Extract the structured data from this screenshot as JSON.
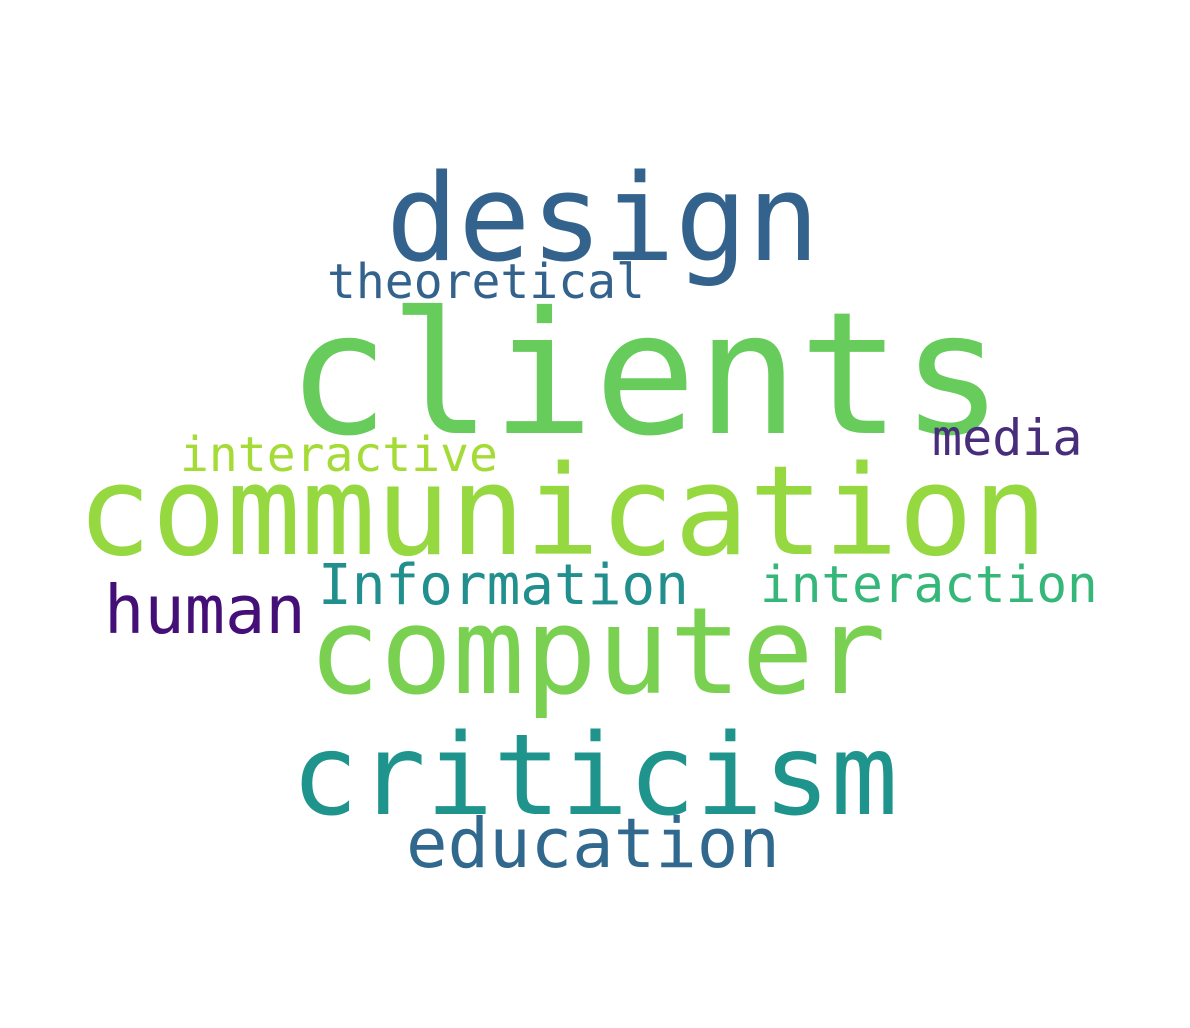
{
  "words": [
    {
      "id": "design",
      "text": "design",
      "color": "#33638d"
    },
    {
      "id": "theoretical",
      "text": "theoretical",
      "color": "#33638d"
    },
    {
      "id": "clients",
      "text": "clients",
      "color": "#67cc5c"
    },
    {
      "id": "media",
      "text": "media",
      "color": "#472d7b"
    },
    {
      "id": "interactive",
      "text": "interactive",
      "color": "#a5db36"
    },
    {
      "id": "communication",
      "text": "communication",
      "color": "#95d840"
    },
    {
      "id": "information",
      "text": "Information",
      "color": "#218f8d"
    },
    {
      "id": "interaction",
      "text": "interaction",
      "color": "#35b779"
    },
    {
      "id": "human",
      "text": "human",
      "color": "#440f76"
    },
    {
      "id": "computer",
      "text": "computer",
      "color": "#7ad151"
    },
    {
      "id": "criticism",
      "text": "criticism",
      "color": "#1f948c"
    },
    {
      "id": "education",
      "text": "education",
      "color": "#31688e"
    }
  ]
}
